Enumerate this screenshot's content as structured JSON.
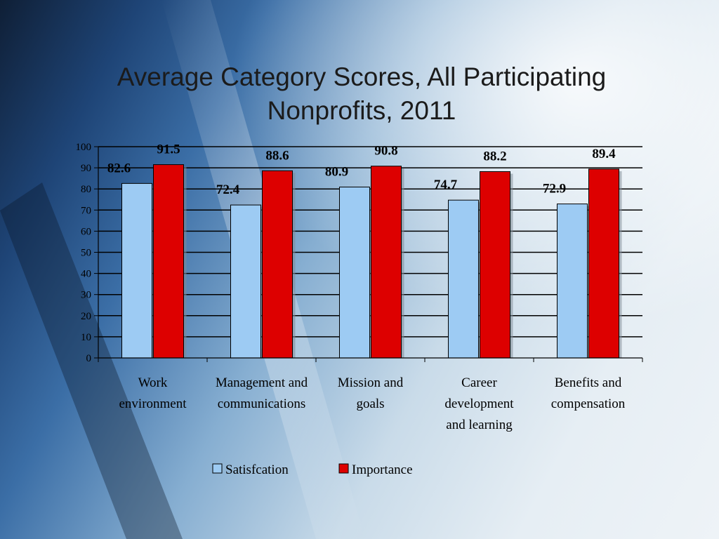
{
  "chart_data": {
    "type": "bar",
    "title": "Average Category Scores, All Participating Nonprofits, 2011",
    "title_lines": [
      "Average Category Scores, All Participating",
      "Nonprofits, 2011"
    ],
    "categories": [
      [
        "Work",
        "environment"
      ],
      [
        "Management and",
        "communications"
      ],
      [
        "Mission and",
        "goals"
      ],
      [
        "Career",
        "development",
        "and learning"
      ],
      [
        "Benefits and",
        "compensation"
      ]
    ],
    "series": [
      {
        "name": "Satisfcation",
        "values": [
          82.6,
          72.4,
          80.9,
          74.7,
          72.9
        ],
        "color": "#9dcbf3"
      },
      {
        "name": "Importance",
        "values": [
          91.5,
          88.6,
          90.8,
          88.2,
          89.4
        ],
        "color": "#dd0000"
      }
    ],
    "ylim": [
      0,
      100
    ],
    "yticks": [
      0,
      10,
      20,
      30,
      40,
      50,
      60,
      70,
      80,
      90,
      100
    ],
    "grid": true,
    "legend_position": "bottom"
  }
}
